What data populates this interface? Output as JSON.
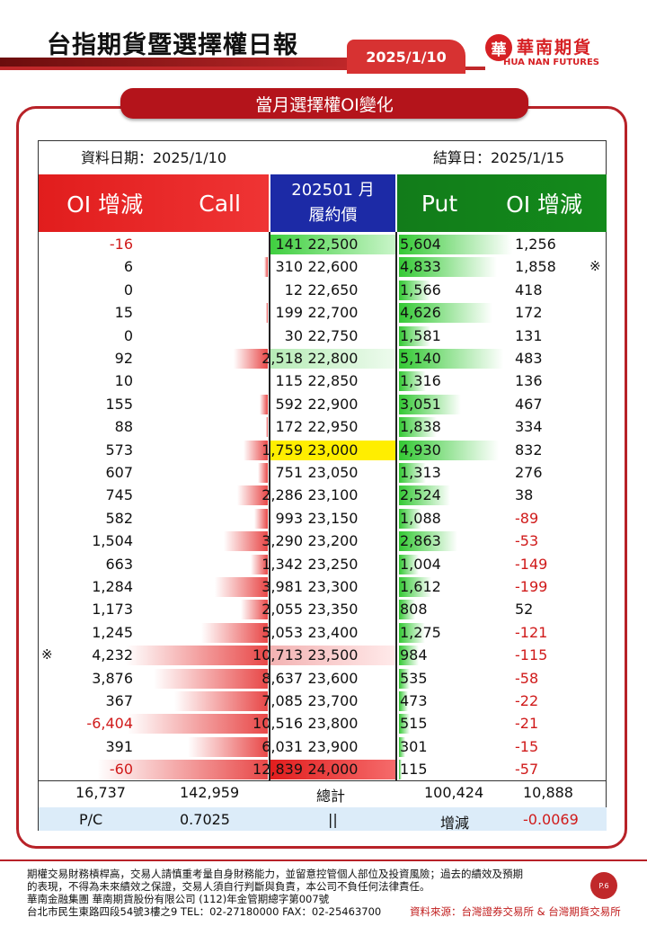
{
  "header": {
    "title": "台指期貨暨選擇權日報",
    "date": "2025/1/10",
    "logo_cn": "華南期貨",
    "logo_en": "HUA NAN FUTURES",
    "logo_mark": "華"
  },
  "section": {
    "title": "當月選擇權OI變化"
  },
  "info": {
    "data_date": "資料日期：2025/1/10",
    "settle_date": "結算日：2025/1/15"
  },
  "columns": {
    "oi_left": "OI 增減",
    "call": "Call",
    "contract": "202501 月",
    "strike": "履約價",
    "put": "Put",
    "oi_right": "OI 增減"
  },
  "rows": [
    {
      "call_oi": "-16",
      "call": "141",
      "strike": "22,500",
      "put": "5,604",
      "put_oi": "1,256",
      "call_bar": 0,
      "put_bar": 0.97,
      "strike_hl": "green"
    },
    {
      "call_oi": "6",
      "call": "310",
      "strike": "22,600",
      "put": "4,833",
      "put_oi": "1,858",
      "call_bar": 0.02,
      "put_bar": 0.84,
      "mark_right": "※"
    },
    {
      "call_oi": "0",
      "call": "12",
      "strike": "22,650",
      "put": "1,566",
      "put_oi": "418",
      "call_bar": 0,
      "put_bar": 0.27
    },
    {
      "call_oi": "15",
      "call": "199",
      "strike": "22,700",
      "put": "4,626",
      "put_oi": "172",
      "call_bar": 0.01,
      "put_bar": 0.8
    },
    {
      "call_oi": "0",
      "call": "30",
      "strike": "22,750",
      "put": "1,581",
      "put_oi": "131",
      "call_bar": 0,
      "put_bar": 0.27
    },
    {
      "call_oi": "92",
      "call": "2,518",
      "strike": "22,800",
      "put": "5,140",
      "put_oi": "483",
      "call_bar": 0.2,
      "put_bar": 0.89,
      "strike_hl": "lightgreen"
    },
    {
      "call_oi": "10",
      "call": "115",
      "strike": "22,850",
      "put": "1,316",
      "put_oi": "136",
      "call_bar": 0,
      "put_bar": 0.23
    },
    {
      "call_oi": "155",
      "call": "592",
      "strike": "22,900",
      "put": "3,051",
      "put_oi": "467",
      "call_bar": 0.05,
      "put_bar": 0.53
    },
    {
      "call_oi": "88",
      "call": "172",
      "strike": "22,950",
      "put": "1,838",
      "put_oi": "334",
      "call_bar": 0.01,
      "put_bar": 0.32
    },
    {
      "call_oi": "573",
      "call": "1,759",
      "strike": "23,000",
      "put": "4,930",
      "put_oi": "832",
      "call_bar": 0.14,
      "put_bar": 0.85,
      "strike_hl": "yellow"
    },
    {
      "call_oi": "607",
      "call": "751",
      "strike": "23,050",
      "put": "1,313",
      "put_oi": "276",
      "call_bar": 0.06,
      "put_bar": 0.23
    },
    {
      "call_oi": "745",
      "call": "2,286",
      "strike": "23,100",
      "put": "2,524",
      "put_oi": "38",
      "call_bar": 0.18,
      "put_bar": 0.44
    },
    {
      "call_oi": "582",
      "call": "993",
      "strike": "23,150",
      "put": "1,088",
      "put_oi": "-89",
      "call_bar": 0.08,
      "put_bar": 0.19
    },
    {
      "call_oi": "1,504",
      "call": "3,290",
      "strike": "23,200",
      "put": "2,863",
      "put_oi": "-53",
      "call_bar": 0.26,
      "put_bar": 0.5
    },
    {
      "call_oi": "663",
      "call": "1,342",
      "strike": "23,250",
      "put": "1,004",
      "put_oi": "-149",
      "call_bar": 0.1,
      "put_bar": 0.17
    },
    {
      "call_oi": "1,284",
      "call": "3,981",
      "strike": "23,300",
      "put": "1,612",
      "put_oi": "-199",
      "call_bar": 0.31,
      "put_bar": 0.28
    },
    {
      "call_oi": "1,173",
      "call": "2,055",
      "strike": "23,350",
      "put": "808",
      "put_oi": "52",
      "call_bar": 0.16,
      "put_bar": 0.14
    },
    {
      "call_oi": "1,245",
      "call": "5,053",
      "strike": "23,400",
      "put": "1,275",
      "put_oi": "-121",
      "call_bar": 0.39,
      "put_bar": 0.22
    },
    {
      "call_oi": "4,232",
      "call": "10,713",
      "strike": "23,500",
      "put": "984",
      "put_oi": "-115",
      "call_bar": 0.83,
      "put_bar": 0.17,
      "strike_hl": "pink",
      "mark_left": "※"
    },
    {
      "call_oi": "3,876",
      "call": "8,637",
      "strike": "23,600",
      "put": "535",
      "put_oi": "-58",
      "call_bar": 0.67,
      "put_bar": 0.09
    },
    {
      "call_oi": "367",
      "call": "7,085",
      "strike": "23,700",
      "put": "473",
      "put_oi": "-22",
      "call_bar": 0.55,
      "put_bar": 0.08
    },
    {
      "call_oi": "-6,404",
      "call": "10,516",
      "strike": "23,800",
      "put": "515",
      "put_oi": "-21",
      "call_bar": 0.82,
      "put_bar": 0.09
    },
    {
      "call_oi": "391",
      "call": "6,031",
      "strike": "23,900",
      "put": "301",
      "put_oi": "-15",
      "call_bar": 0.47,
      "put_bar": 0.05
    },
    {
      "call_oi": "-60",
      "call": "12,839",
      "strike": "24,000",
      "put": "115",
      "put_oi": "-57",
      "call_bar": 1.0,
      "put_bar": 0.02,
      "strike_hl": "red"
    }
  ],
  "totals": {
    "call_oi": "16,737",
    "call": "142,959",
    "label": "總計",
    "put": "100,424",
    "put_oi": "10,888"
  },
  "pc": {
    "label": "P/C",
    "value": "0.7025",
    "sep": "||",
    "change_label": "增減",
    "change": "-0.0069"
  },
  "footer": {
    "line1": "期權交易財務槓桿高，交易人請慎重考量自身財務能力，並留意控管個人部位及投資風險；過去的績效及預期",
    "line2": "的表現，不得為未來績效之保證，交易人須自行判斷與負責，本公司不負任何法律責任。",
    "line3": "華南金融集團 華南期貨股份有限公司 (112)年金管期總字第007號",
    "line4": "台北市民生東路四段54號3樓之9  TEL：02-27180000  FAX：02-25463700",
    "source": "資料來源：台灣證券交易所 & 台灣期貨交易所",
    "page": "P.6"
  },
  "colors": {
    "brand_red": "#c0282a",
    "call_red": "#e11d1d",
    "put_green": "#127c1a",
    "strike_blue": "#1c2aa6"
  }
}
